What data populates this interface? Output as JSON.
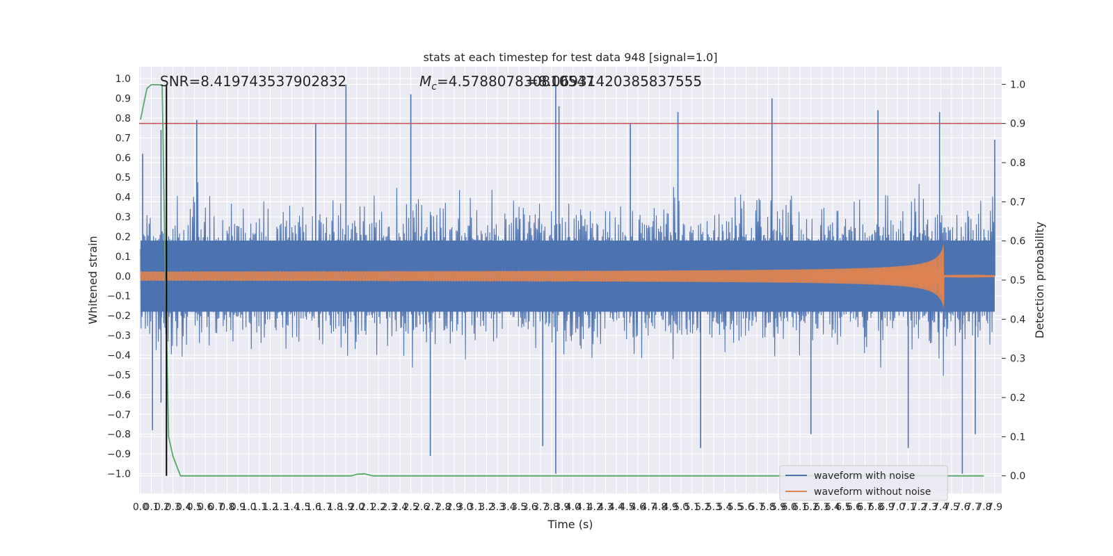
{
  "chart_data": {
    "type": "line",
    "title": "stats at each timestep for test data 948 [signal=1.0]",
    "xlabel": "Time (s)",
    "ylabel": "Whitened strain",
    "y2label": "Detection probability",
    "xlim": [
      0,
      7.9
    ],
    "ylim": [
      -1.1,
      1.06
    ],
    "y2lim": [
      -0.045,
      1.045
    ],
    "grid": true,
    "legend_placement": "lower-right",
    "x_ticks": [
      "0.0",
      "0.1",
      "0.2",
      "0.3",
      "0.4",
      "0.5",
      "0.6",
      "0.7",
      "0.8",
      "0.9",
      "1.0",
      "1.1",
      "1.2",
      "1.3",
      "1.4",
      "1.5",
      "1.6",
      "1.7",
      "1.8",
      "1.9",
      "2.0",
      "2.1",
      "2.2",
      "2.3",
      "2.4",
      "2.5",
      "2.6",
      "2.7",
      "2.8",
      "2.9",
      "3.0",
      "3.1",
      "3.2",
      "3.3",
      "3.4",
      "3.5",
      "3.6",
      "3.7",
      "3.8",
      "3.9",
      "4.0",
      "4.1",
      "4.2",
      "4.3",
      "4.4",
      "4.5",
      "4.6",
      "4.7",
      "4.8",
      "4.9",
      "5.0",
      "5.1",
      "5.2",
      "5.3",
      "5.4",
      "5.5",
      "5.6",
      "5.7",
      "5.8",
      "5.9",
      "6.0",
      "6.1",
      "6.2",
      "6.3",
      "6.4",
      "6.5",
      "6.6",
      "6.7",
      "6.8",
      "6.9",
      "7.0",
      "7.1",
      "7.2",
      "7.3",
      "7.4",
      "7.5",
      "7.6",
      "7.7",
      "7.8",
      "7.9"
    ],
    "y_ticks": [
      "1.0",
      "0.9",
      "0.8",
      "0.7",
      "0.6",
      "0.5",
      "0.4",
      "0.3",
      "0.2",
      "0.1",
      "0.0",
      "−0.1",
      "−0.2",
      "−0.3",
      "−0.4",
      "−0.5",
      "−0.6",
      "−0.7",
      "−0.8",
      "−0.9",
      "−1.0"
    ],
    "y2_ticks": [
      "1.0",
      "0.9",
      "0.8",
      "0.7",
      "0.6",
      "0.5",
      "0.4",
      "0.3",
      "0.2",
      "0.1",
      "0.0"
    ],
    "annotations": {
      "snr": "SNR=8.419743537902832",
      "mc_prefix": "M",
      "mc_sub": "c",
      "mc_value": "=4.578807830810547",
      "overlap": "=8.06931420385837555"
    },
    "series": [
      {
        "name": "waveform with noise",
        "color": "#4c72b0",
        "axis": "left",
        "sample_rate_per_s": 200,
        "band_core": 0.3,
        "peaks": [
          [
            0.02,
            0.62
          ],
          [
            0.19,
            0.74
          ],
          [
            0.52,
            0.79
          ],
          [
            1.62,
            0.77
          ],
          [
            1.9,
            0.97
          ],
          [
            2.5,
            0.92
          ],
          [
            3.84,
            0.97
          ],
          [
            3.87,
            0.86
          ],
          [
            4.53,
            0.77
          ],
          [
            4.97,
            0.83
          ],
          [
            5.84,
            0.9
          ],
          [
            6.82,
            0.84
          ],
          [
            7.39,
            0.83
          ],
          [
            7.9,
            0.69
          ]
        ],
        "troughs": [
          [
            0.11,
            -0.78
          ],
          [
            0.19,
            -0.64
          ],
          [
            2.68,
            -0.91
          ],
          [
            3.72,
            -0.86
          ],
          [
            3.84,
            -1.0
          ],
          [
            5.18,
            -0.87
          ],
          [
            6.2,
            -0.8
          ],
          [
            7.1,
            -0.87
          ],
          [
            7.6,
            -1.0
          ],
          [
            7.72,
            -0.8
          ]
        ]
      },
      {
        "name": "waveform without noise",
        "color": "#dd8452",
        "axis": "left",
        "chirp_start_amp": 0.015,
        "chirp_peak_amp": 0.17,
        "merger_time_s": 7.43,
        "ringdown_amp": 0.005
      },
      {
        "name": "detection probability",
        "color": "#55a868",
        "axis": "right",
        "x": [
          0.0,
          0.06,
          0.1,
          0.15,
          0.2,
          0.23,
          0.26,
          0.3,
          0.37,
          1.95,
          2.0,
          2.07,
          2.15,
          7.8
        ],
        "y": [
          0.91,
          0.99,
          0.999,
          0.999,
          0.998,
          0.5,
          0.1,
          0.05,
          0.0,
          0.0,
          0.004,
          0.005,
          0.0,
          0.0
        ]
      }
    ],
    "threshold_line": {
      "axis": "right",
      "value": 0.9,
      "color": "#c44e52"
    },
    "vertical_line": {
      "x": 0.24,
      "color": "#000000"
    }
  }
}
